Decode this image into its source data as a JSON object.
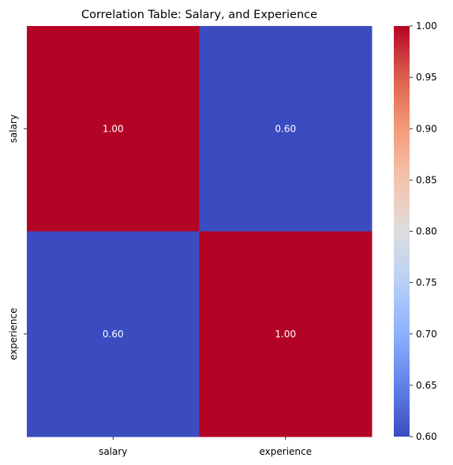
{
  "chart_data": {
    "type": "heatmap",
    "title": "Correlation Table: Salary, and Experience",
    "xlabel": "",
    "ylabel": "",
    "x_categories": [
      "salary",
      "experience"
    ],
    "y_categories": [
      "salary",
      "experience"
    ],
    "values": [
      [
        1.0,
        0.6
      ],
      [
        0.6,
        1.0
      ]
    ],
    "cell_labels": [
      [
        "1.00",
        "0.60"
      ],
      [
        "0.60",
        "1.00"
      ]
    ],
    "colormap": "coolwarm",
    "colorbar": {
      "range": [
        0.6,
        1.0
      ],
      "ticks": [
        0.6,
        0.65,
        0.7,
        0.75,
        0.8,
        0.85,
        0.9,
        0.95,
        1.0
      ],
      "tick_labels": [
        "0.60",
        "0.65",
        "0.70",
        "0.75",
        "0.80",
        "0.85",
        "0.90",
        "0.95",
        "1.00"
      ]
    },
    "colors": {
      "low": "#3b4cc0",
      "high": "#b40426",
      "text": "#ffffff"
    }
  }
}
